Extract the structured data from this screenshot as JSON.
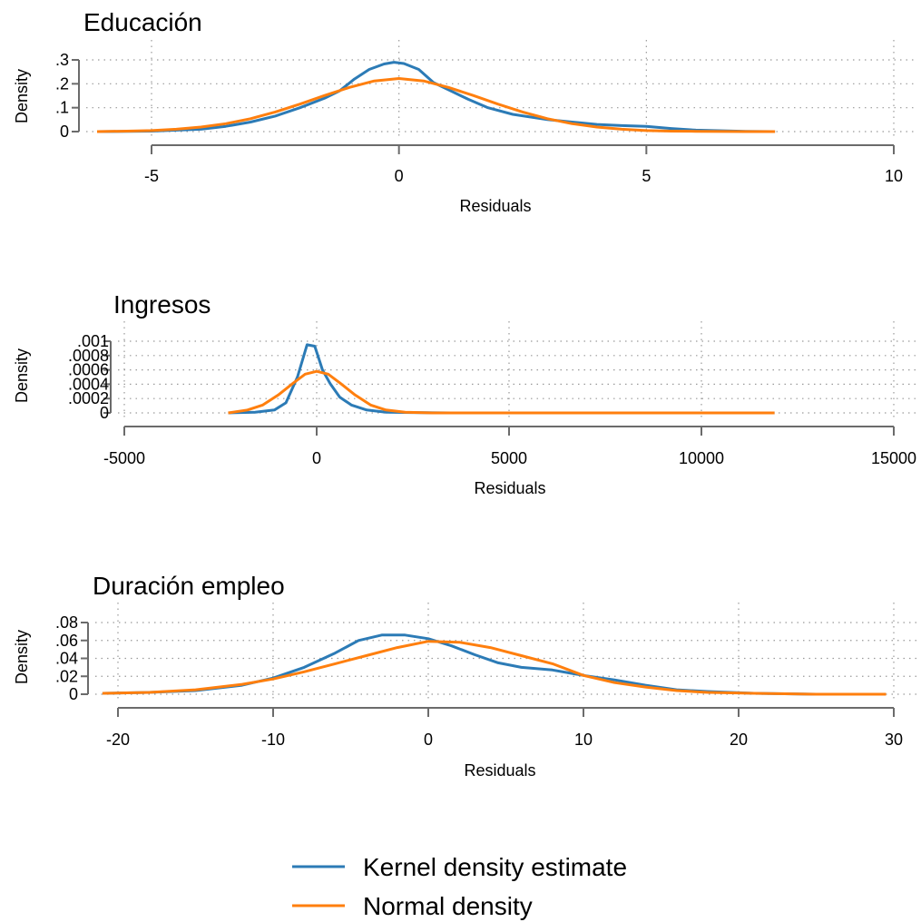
{
  "legend": {
    "placement": "bottom-center",
    "items": [
      {
        "label": "Kernel density estimate",
        "color": "#2c7bb6"
      },
      {
        "label": "Normal density",
        "color": "#ff7f0e"
      }
    ]
  },
  "chart_data": [
    {
      "type": "line",
      "title": "Educación",
      "xlabel": "Residuals",
      "ylabel": "Density",
      "xlim": [
        -5.5,
        10
      ],
      "ylim": [
        0,
        0.3
      ],
      "xticks": [
        -5,
        0,
        5,
        10
      ],
      "xticklabels": [
        "-5",
        "0",
        "5",
        "10"
      ],
      "yticks": [
        0,
        0.1,
        0.2,
        0.3
      ],
      "yticklabels": [
        "0",
        ".1",
        ".2",
        ".3"
      ],
      "grid": "dotted",
      "series": [
        {
          "name": "Kernel density estimate",
          "color": "#2c7bb6",
          "x": [
            -6.1,
            -5,
            -4,
            -3.5,
            -3,
            -2.5,
            -2,
            -1.5,
            -1.2,
            -0.9,
            -0.6,
            -0.3,
            -0.1,
            0.1,
            0.4,
            0.7,
            1,
            1.4,
            1.8,
            2.3,
            3,
            3.5,
            4,
            4.5,
            5,
            5.5,
            6,
            7,
            7.6
          ],
          "y": [
            0,
            0.002,
            0.01,
            0.022,
            0.04,
            0.065,
            0.1,
            0.14,
            0.17,
            0.22,
            0.26,
            0.283,
            0.29,
            0.285,
            0.26,
            0.205,
            0.175,
            0.135,
            0.1,
            0.072,
            0.05,
            0.04,
            0.03,
            0.025,
            0.022,
            0.013,
            0.006,
            0.001,
            0
          ]
        },
        {
          "name": "Normal density",
          "color": "#ff7f0e",
          "x": [
            -6.1,
            -5.5,
            -5,
            -4.5,
            -4,
            -3.5,
            -3,
            -2.5,
            -2,
            -1.5,
            -1,
            -0.5,
            0,
            0.5,
            1,
            1.5,
            2,
            2.5,
            3,
            3.5,
            4,
            4.5,
            5,
            5.5,
            6,
            7,
            7.6
          ],
          "y": [
            0,
            0.002,
            0.004,
            0.01,
            0.019,
            0.033,
            0.054,
            0.082,
            0.115,
            0.151,
            0.185,
            0.212,
            0.222,
            0.212,
            0.185,
            0.151,
            0.115,
            0.082,
            0.054,
            0.033,
            0.019,
            0.01,
            0.004,
            0.002,
            0.001,
            0,
            0
          ]
        }
      ]
    },
    {
      "type": "line",
      "title": "Ingresos",
      "xlabel": "Residuals",
      "ylabel": "Density",
      "xlim": [
        -5500,
        15000
      ],
      "ylim": [
        0,
        0.001
      ],
      "xticks": [
        -5000,
        0,
        5000,
        10000,
        15000
      ],
      "xticklabels": [
        "-5000",
        "0",
        "5000",
        "10000",
        "15000"
      ],
      "yticks": [
        0,
        0.0002,
        0.0004,
        0.0006,
        0.0008,
        0.001
      ],
      "yticklabels": [
        "0",
        ".0002",
        ".0004",
        ".0006",
        ".0008",
        ".001"
      ],
      "grid": "dotted",
      "series": [
        {
          "name": "Kernel density estimate",
          "color": "#2c7bb6",
          "x": [
            -2300,
            -1600,
            -1100,
            -800,
            -500,
            -250,
            -50,
            150,
            350,
            600,
            900,
            1300,
            1800,
            2500,
            3500,
            5000,
            8000,
            11900
          ],
          "y": [
            0,
            1e-05,
            4e-05,
            0.00014,
            0.0005,
            0.00095,
            0.00093,
            0.0006,
            0.00041,
            0.00022,
            0.00011,
            4e-05,
            1e-05,
            5e-06,
            0,
            0,
            0,
            0
          ]
        },
        {
          "name": "Normal density",
          "color": "#ff7f0e",
          "x": [
            -2300,
            -1800,
            -1400,
            -1000,
            -600,
            -300,
            0,
            300,
            600,
            1000,
            1400,
            1800,
            2300,
            3000,
            5000,
            8000,
            11900
          ],
          "y": [
            0,
            4e-05,
            0.00011,
            0.00025,
            0.00042,
            0.00054,
            0.00058,
            0.00054,
            0.00042,
            0.00025,
            0.00011,
            4e-05,
            1e-05,
            0,
            0,
            0,
            0
          ]
        }
      ]
    },
    {
      "type": "line",
      "title": "Duración empleo",
      "xlabel": "Residuals",
      "ylabel": "Density",
      "xlim": [
        -21,
        30
      ],
      "ylim": [
        0,
        0.08
      ],
      "xticks": [
        -20,
        -10,
        0,
        10,
        20,
        30
      ],
      "xticklabels": [
        "-20",
        "-10",
        "0",
        "10",
        "20",
        "30"
      ],
      "yticks": [
        0,
        0.02,
        0.04,
        0.06,
        0.08
      ],
      "yticklabels": [
        "0",
        ".02",
        ".04",
        ".06",
        ".08"
      ],
      "grid": "dotted",
      "series": [
        {
          "name": "Kernel density estimate",
          "color": "#2c7bb6",
          "x": [
            -21,
            -18,
            -15,
            -12,
            -10,
            -8,
            -6,
            -4.5,
            -3,
            -1.5,
            0,
            1.5,
            3,
            4.5,
            6,
            8,
            10,
            12,
            14,
            16,
            18,
            21,
            25,
            29.5
          ],
          "y": [
            0.001,
            0.002,
            0.004,
            0.01,
            0.018,
            0.03,
            0.046,
            0.06,
            0.066,
            0.066,
            0.062,
            0.054,
            0.044,
            0.035,
            0.03,
            0.027,
            0.021,
            0.016,
            0.01,
            0.005,
            0.003,
            0.001,
            0,
            0
          ]
        },
        {
          "name": "Normal density",
          "color": "#ff7f0e",
          "x": [
            -21,
            -18,
            -15,
            -12,
            -10,
            -8,
            -6,
            -4,
            -2,
            0,
            2,
            4,
            6,
            8,
            10,
            12,
            14,
            16,
            18,
            21,
            25,
            29.5
          ],
          "y": [
            0.001,
            0.002,
            0.005,
            0.011,
            0.017,
            0.025,
            0.034,
            0.043,
            0.052,
            0.059,
            0.058,
            0.052,
            0.043,
            0.034,
            0.021,
            0.013,
            0.008,
            0.004,
            0.002,
            0.001,
            0,
            0
          ]
        }
      ]
    }
  ]
}
